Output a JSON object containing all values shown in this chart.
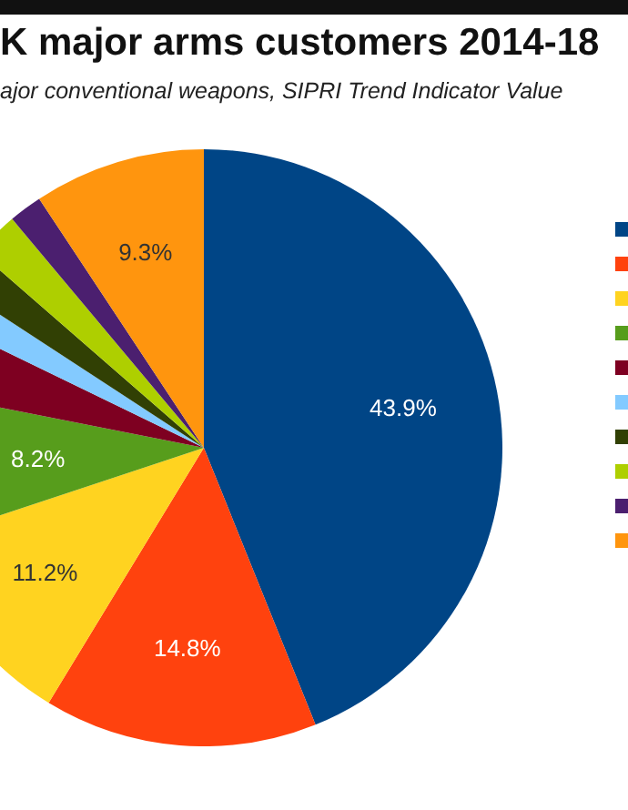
{
  "chart_data": {
    "type": "pie",
    "title": "K major arms customers 2014-18",
    "subtitle": "ajor conventional weapons, SIPRI Trend Indicator Value",
    "categories": [
      null,
      null,
      null,
      null,
      null,
      null,
      null,
      null,
      null,
      null
    ],
    "values": [
      43.9,
      14.8,
      11.2,
      8.2,
      4.1,
      2.0,
      2.2,
      2.5,
      1.8,
      9.3
    ],
    "colors": [
      "#004586",
      "#ff420e",
      "#ffd320",
      "#579d1c",
      "#7e0021",
      "#83caff",
      "#314004",
      "#aecf00",
      "#4b1f6f",
      "#ff950e"
    ],
    "value_labels": [
      "43.9%",
      "14.8%",
      "11.2%",
      "8.2%",
      null,
      null,
      null,
      null,
      null,
      "9.3%"
    ]
  }
}
